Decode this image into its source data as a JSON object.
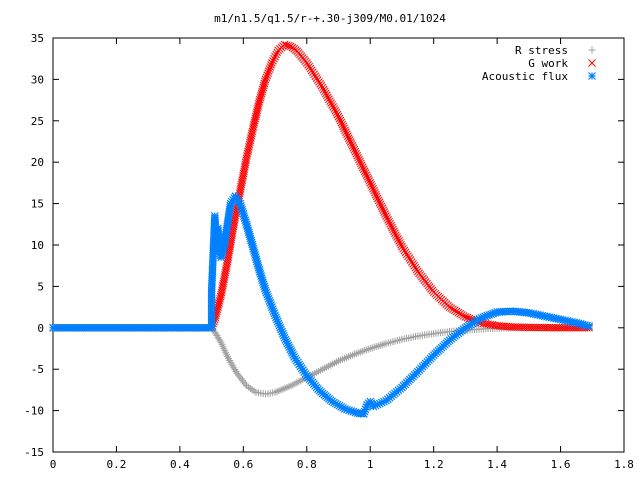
{
  "chart_data": {
    "type": "scatter",
    "title": "m1/n1.5/q1.5/r-+.30-j309/M0.01/1024",
    "xlabel": "",
    "ylabel": "",
    "xlim": [
      0,
      1.8
    ],
    "ylim": [
      -15,
      35
    ],
    "x_ticks": [
      "0",
      "0.2",
      "0.4",
      "0.6",
      "0.8",
      "1",
      "1.2",
      "1.4",
      "1.6",
      "1.8"
    ],
    "y_ticks": [
      "-15",
      "-10",
      "-5",
      "0",
      "5",
      "10",
      "15",
      "20",
      "25",
      "30",
      "35"
    ],
    "grid": false,
    "legend_position": "top-right",
    "series": [
      {
        "name": "R stress",
        "marker": "plus",
        "color": "#a0a0a0",
        "points": [
          [
            0.0,
            0
          ],
          [
            0.1,
            0
          ],
          [
            0.2,
            0
          ],
          [
            0.3,
            0
          ],
          [
            0.4,
            0
          ],
          [
            0.5,
            0
          ],
          [
            0.51,
            -0.5
          ],
          [
            0.53,
            -1.8
          ],
          [
            0.55,
            -3.5
          ],
          [
            0.58,
            -5.5
          ],
          [
            0.61,
            -7.0
          ],
          [
            0.64,
            -7.8
          ],
          [
            0.67,
            -8.0
          ],
          [
            0.7,
            -7.8
          ],
          [
            0.75,
            -7.0
          ],
          [
            0.8,
            -6.0
          ],
          [
            0.85,
            -5.0
          ],
          [
            0.9,
            -4.0
          ],
          [
            0.95,
            -3.2
          ],
          [
            1.0,
            -2.5
          ],
          [
            1.05,
            -1.9
          ],
          [
            1.1,
            -1.4
          ],
          [
            1.15,
            -1.0
          ],
          [
            1.2,
            -0.7
          ],
          [
            1.25,
            -0.45
          ],
          [
            1.3,
            -0.3
          ],
          [
            1.35,
            -0.15
          ],
          [
            1.4,
            -0.05
          ],
          [
            1.5,
            0
          ],
          [
            1.6,
            0
          ],
          [
            1.69,
            0
          ]
        ]
      },
      {
        "name": "G work",
        "marker": "cross",
        "color": "#ff0000",
        "points": [
          [
            0.0,
            0
          ],
          [
            0.1,
            0
          ],
          [
            0.2,
            0
          ],
          [
            0.3,
            0
          ],
          [
            0.4,
            0
          ],
          [
            0.5,
            0
          ],
          [
            0.51,
            1.0
          ],
          [
            0.53,
            4.0
          ],
          [
            0.55,
            8.0
          ],
          [
            0.57,
            12.5
          ],
          [
            0.59,
            16.5
          ],
          [
            0.61,
            20.5
          ],
          [
            0.63,
            24.0
          ],
          [
            0.65,
            27.3
          ],
          [
            0.67,
            30.0
          ],
          [
            0.69,
            32.0
          ],
          [
            0.71,
            33.5
          ],
          [
            0.73,
            34.2
          ],
          [
            0.75,
            34.0
          ],
          [
            0.77,
            33.4
          ],
          [
            0.8,
            32.0
          ],
          [
            0.85,
            29.0
          ],
          [
            0.9,
            25.5
          ],
          [
            0.95,
            21.5
          ],
          [
            1.0,
            17.5
          ],
          [
            1.05,
            13.5
          ],
          [
            1.1,
            9.8
          ],
          [
            1.15,
            6.8
          ],
          [
            1.2,
            4.3
          ],
          [
            1.25,
            2.5
          ],
          [
            1.3,
            1.3
          ],
          [
            1.35,
            0.6
          ],
          [
            1.4,
            0.25
          ],
          [
            1.45,
            0.1
          ],
          [
            1.5,
            0.05
          ],
          [
            1.6,
            0
          ],
          [
            1.69,
            0
          ]
        ]
      },
      {
        "name": "Acoustic flux",
        "marker": "star",
        "color": "#0080ff",
        "points": [
          [
            0.0,
            0
          ],
          [
            0.1,
            0
          ],
          [
            0.2,
            0
          ],
          [
            0.3,
            0
          ],
          [
            0.4,
            0
          ],
          [
            0.5,
            0
          ],
          [
            0.5,
            4.5
          ],
          [
            0.505,
            9.0
          ],
          [
            0.51,
            13.5
          ],
          [
            0.515,
            10.5
          ],
          [
            0.52,
            12.0
          ],
          [
            0.525,
            9.5
          ],
          [
            0.53,
            8.5
          ],
          [
            0.54,
            10.0
          ],
          [
            0.55,
            12.5
          ],
          [
            0.56,
            15.0
          ],
          [
            0.575,
            15.9
          ],
          [
            0.59,
            15.0
          ],
          [
            0.61,
            12.5
          ],
          [
            0.63,
            9.8
          ],
          [
            0.65,
            7.0
          ],
          [
            0.67,
            4.5
          ],
          [
            0.7,
            1.5
          ],
          [
            0.73,
            -1.2
          ],
          [
            0.76,
            -3.5
          ],
          [
            0.8,
            -5.8
          ],
          [
            0.84,
            -7.6
          ],
          [
            0.88,
            -8.9
          ],
          [
            0.92,
            -9.8
          ],
          [
            0.96,
            -10.3
          ],
          [
            0.98,
            -10.4
          ],
          [
            0.99,
            -9.3
          ],
          [
            1.0,
            -8.9
          ],
          [
            1.01,
            -9.5
          ],
          [
            1.05,
            -8.8
          ],
          [
            1.1,
            -7.2
          ],
          [
            1.15,
            -5.3
          ],
          [
            1.2,
            -3.3
          ],
          [
            1.25,
            -1.5
          ],
          [
            1.3,
            0.0
          ],
          [
            1.35,
            1.2
          ],
          [
            1.4,
            1.9
          ],
          [
            1.45,
            2.0
          ],
          [
            1.5,
            1.8
          ],
          [
            1.55,
            1.4
          ],
          [
            1.6,
            1.0
          ],
          [
            1.65,
            0.6
          ],
          [
            1.69,
            0.2
          ]
        ]
      }
    ]
  }
}
